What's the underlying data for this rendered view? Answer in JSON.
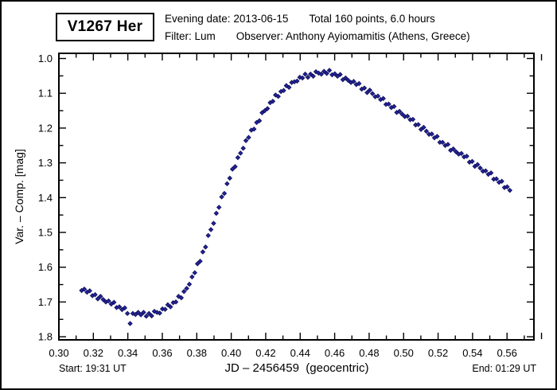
{
  "header": {
    "star_name": "V1267 Her",
    "line1_left": "Evening date: 2013-06-15",
    "line1_right": "Total 160 points, 6.0 hours",
    "line2_left": "Filter: Lum",
    "line2_right": "Observer: Anthony Ayiomamitis (Athens, Greece)"
  },
  "footer": {
    "start_label": "Start: 19:31 UT",
    "end_label": "End: 01:29 UT"
  },
  "chart_data": {
    "type": "scatter",
    "title": "V1267 Her",
    "xlabel": "JD – 2456459  (geocentric)",
    "ylabel": "Var. – Comp. [mag]",
    "xlim": [
      0.3,
      0.5756
    ],
    "ylim": [
      1.809,
      0.984
    ],
    "y_axis_inverted": true,
    "grid": false,
    "legend": null,
    "x_tick_labels": [
      "0.30",
      "0.32",
      "0.34",
      "0.36",
      "0.38",
      "0.40",
      "0.42",
      "0.44",
      "0.46",
      "0.48",
      "0.50",
      "0.52",
      "0.54",
      "0.56"
    ],
    "x_minor_step": 0.01,
    "y_tick_labels": [
      "1.0",
      "1.1",
      "1.2",
      "1.3",
      "1.4",
      "1.5",
      "1.6",
      "1.7",
      "1.8"
    ],
    "y_minor_step": 0.05,
    "n_points": 160,
    "marker": {
      "shape": "diamond",
      "size": 5,
      "color": "#24249B",
      "edge_color": "#10105E"
    },
    "points": [
      [
        0.3132,
        1.667
      ],
      [
        0.31476,
        1.663
      ],
      [
        0.31633,
        1.672
      ],
      [
        0.31789,
        1.668
      ],
      [
        0.31945,
        1.682
      ],
      [
        0.32101,
        1.679
      ],
      [
        0.32258,
        1.691
      ],
      [
        0.32414,
        1.684
      ],
      [
        0.3257,
        1.693
      ],
      [
        0.32726,
        1.7
      ],
      [
        0.32883,
        1.697
      ],
      [
        0.33039,
        1.706
      ],
      [
        0.33195,
        1.701
      ],
      [
        0.33351,
        1.716
      ],
      [
        0.33508,
        1.714
      ],
      [
        0.33664,
        1.722
      ],
      [
        0.3382,
        1.717
      ],
      [
        0.33976,
        1.733
      ],
      [
        0.34133,
        1.762
      ],
      [
        0.34289,
        1.733
      ],
      [
        0.34445,
        1.736
      ],
      [
        0.34601,
        1.73
      ],
      [
        0.34758,
        1.737
      ],
      [
        0.34914,
        1.73
      ],
      [
        0.3507,
        1.741
      ],
      [
        0.35226,
        1.733
      ],
      [
        0.35383,
        1.74
      ],
      [
        0.35539,
        1.727
      ],
      [
        0.35695,
        1.73
      ],
      [
        0.35851,
        1.732
      ],
      [
        0.36008,
        1.72
      ],
      [
        0.36164,
        1.721
      ],
      [
        0.3632,
        1.708
      ],
      [
        0.36476,
        1.714
      ],
      [
        0.36633,
        1.702
      ],
      [
        0.36789,
        1.7
      ],
      [
        0.36945,
        1.684
      ],
      [
        0.37101,
        1.688
      ],
      [
        0.37258,
        1.67
      ],
      [
        0.37414,
        1.661
      ],
      [
        0.3757,
        1.649
      ],
      [
        0.37726,
        1.628
      ],
      [
        0.37883,
        1.616
      ],
      [
        0.38039,
        1.59
      ],
      [
        0.38195,
        1.583
      ],
      [
        0.38351,
        1.556
      ],
      [
        0.38508,
        1.542
      ],
      [
        0.38664,
        1.509
      ],
      [
        0.3882,
        1.492
      ],
      [
        0.38976,
        1.474
      ],
      [
        0.39133,
        1.445
      ],
      [
        0.39289,
        1.428
      ],
      [
        0.39445,
        1.398
      ],
      [
        0.39601,
        1.388
      ],
      [
        0.39758,
        1.36
      ],
      [
        0.39914,
        1.344
      ],
      [
        0.4007,
        1.318
      ],
      [
        0.40226,
        1.311
      ],
      [
        0.40383,
        1.285
      ],
      [
        0.40539,
        1.272
      ],
      [
        0.40695,
        1.258
      ],
      [
        0.40851,
        1.236
      ],
      [
        0.41008,
        1.227
      ],
      [
        0.41164,
        1.206
      ],
      [
        0.4132,
        1.203
      ],
      [
        0.41476,
        1.184
      ],
      [
        0.41633,
        1.179
      ],
      [
        0.41789,
        1.156
      ],
      [
        0.41945,
        1.15
      ],
      [
        0.42101,
        1.144
      ],
      [
        0.42258,
        1.127
      ],
      [
        0.42414,
        1.123
      ],
      [
        0.4257,
        1.105
      ],
      [
        0.42726,
        1.109
      ],
      [
        0.42883,
        1.095
      ],
      [
        0.43039,
        1.092
      ],
      [
        0.43195,
        1.078
      ],
      [
        0.43351,
        1.083
      ],
      [
        0.43508,
        1.069
      ],
      [
        0.43664,
        1.067
      ],
      [
        0.4382,
        1.065
      ],
      [
        0.43976,
        1.054
      ],
      [
        0.44133,
        1.056
      ],
      [
        0.44289,
        1.045
      ],
      [
        0.44445,
        1.054
      ],
      [
        0.44601,
        1.045
      ],
      [
        0.44758,
        1.051
      ],
      [
        0.44914,
        1.038
      ],
      [
        0.4507,
        1.042
      ],
      [
        0.45226,
        1.045
      ],
      [
        0.45383,
        1.037
      ],
      [
        0.45539,
        1.043
      ],
      [
        0.45695,
        1.034
      ],
      [
        0.45851,
        1.047
      ],
      [
        0.46008,
        1.044
      ],
      [
        0.46164,
        1.051
      ],
      [
        0.4632,
        1.046
      ],
      [
        0.46476,
        1.061
      ],
      [
        0.46633,
        1.056
      ],
      [
        0.46789,
        1.063
      ],
      [
        0.46945,
        1.069
      ],
      [
        0.47101,
        1.066
      ],
      [
        0.47258,
        1.075
      ],
      [
        0.47414,
        1.072
      ],
      [
        0.4757,
        1.088
      ],
      [
        0.47726,
        1.085
      ],
      [
        0.47883,
        1.098
      ],
      [
        0.48039,
        1.091
      ],
      [
        0.48195,
        1.101
      ],
      [
        0.48351,
        1.11
      ],
      [
        0.48508,
        1.108
      ],
      [
        0.48664,
        1.118
      ],
      [
        0.4882,
        1.115
      ],
      [
        0.48976,
        1.132
      ],
      [
        0.49133,
        1.131
      ],
      [
        0.49289,
        1.141
      ],
      [
        0.49445,
        1.138
      ],
      [
        0.49601,
        1.155
      ],
      [
        0.49758,
        1.152
      ],
      [
        0.49914,
        1.16
      ],
      [
        0.5007,
        1.167
      ],
      [
        0.50226,
        1.166
      ],
      [
        0.50383,
        1.176
      ],
      [
        0.50539,
        1.175
      ],
      [
        0.50695,
        1.191
      ],
      [
        0.50851,
        1.19
      ],
      [
        0.51008,
        1.204
      ],
      [
        0.51164,
        1.198
      ],
      [
        0.5132,
        1.209
      ],
      [
        0.51476,
        1.218
      ],
      [
        0.51633,
        1.217
      ],
      [
        0.51789,
        1.228
      ],
      [
        0.51945,
        1.224
      ],
      [
        0.52101,
        1.241
      ],
      [
        0.52258,
        1.241
      ],
      [
        0.52414,
        1.25
      ],
      [
        0.5257,
        1.247
      ],
      [
        0.52726,
        1.264
      ],
      [
        0.52883,
        1.26
      ],
      [
        0.53039,
        1.268
      ],
      [
        0.53195,
        1.275
      ],
      [
        0.53351,
        1.273
      ],
      [
        0.53508,
        1.283
      ],
      [
        0.53664,
        1.281
      ],
      [
        0.5382,
        1.298
      ],
      [
        0.53976,
        1.296
      ],
      [
        0.54133,
        1.31
      ],
      [
        0.54289,
        1.305
      ],
      [
        0.54445,
        1.315
      ],
      [
        0.54601,
        1.324
      ],
      [
        0.54758,
        1.323
      ],
      [
        0.54914,
        1.333
      ],
      [
        0.5507,
        1.329
      ],
      [
        0.55226,
        1.347
      ],
      [
        0.55383,
        1.346
      ],
      [
        0.55539,
        1.356
      ],
      [
        0.55695,
        1.353
      ],
      [
        0.55851,
        1.371
      ],
      [
        0.56008,
        1.369
      ],
      [
        0.56164,
        1.379
      ]
    ]
  }
}
